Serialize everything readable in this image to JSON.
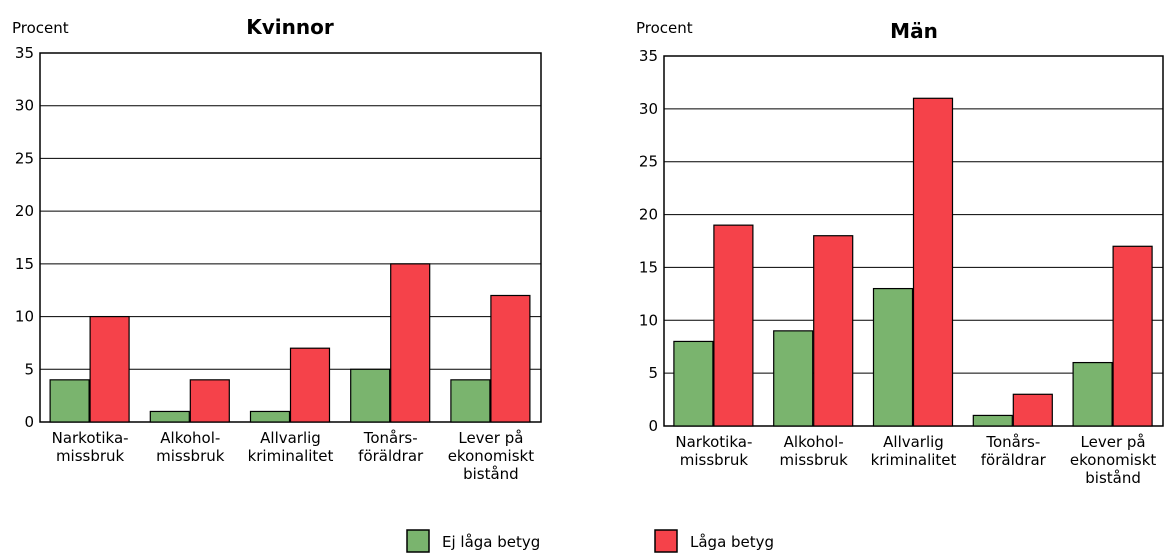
{
  "chart_data": [
    {
      "type": "bar",
      "title": "Kvinnor",
      "ylabel": "Procent",
      "ylim": [
        0,
        35
      ],
      "yticks": [
        0,
        5,
        10,
        15,
        20,
        25,
        30,
        35
      ],
      "categories": [
        [
          "Narkotika-",
          "missbruk"
        ],
        [
          "Alkohol-",
          "missbruk"
        ],
        [
          "Allvarlig",
          "kriminalitet"
        ],
        [
          "Tonårs-",
          "föräldrar"
        ],
        [
          "Lever på",
          "ekonomiskt",
          "bistånd"
        ]
      ],
      "series": [
        {
          "name": "Ej låga betyg",
          "values": [
            4,
            1,
            1,
            5,
            4
          ]
        },
        {
          "name": "Låga betyg",
          "values": [
            10,
            4,
            7,
            15,
            12
          ]
        }
      ],
      "grid": true
    },
    {
      "type": "bar",
      "title": "Män",
      "ylabel": "Procent",
      "ylim": [
        0,
        35
      ],
      "yticks": [
        0,
        5,
        10,
        15,
        20,
        25,
        30,
        35
      ],
      "categories": [
        [
          "Narkotika-",
          "missbruk"
        ],
        [
          "Alkohol-",
          "missbruk"
        ],
        [
          "Allvarlig",
          "kriminalitet"
        ],
        [
          "Tonårs-",
          "föräldrar"
        ],
        [
          "Lever på",
          "ekonomiskt",
          "bistånd"
        ]
      ],
      "series": [
        {
          "name": "Ej låga betyg",
          "values": [
            8,
            9,
            13,
            1,
            6
          ]
        },
        {
          "name": "Låga betyg",
          "values": [
            19,
            18,
            31,
            3,
            17
          ]
        }
      ],
      "grid": true
    }
  ],
  "legend": {
    "placement": "bottom-center",
    "items": [
      {
        "label": "Ej låga betyg",
        "color": "#7ab46e"
      },
      {
        "label": "Låga betyg",
        "color": "#f5424a"
      }
    ]
  },
  "colors": {
    "series": [
      "#7ab46e",
      "#f5424a"
    ]
  }
}
